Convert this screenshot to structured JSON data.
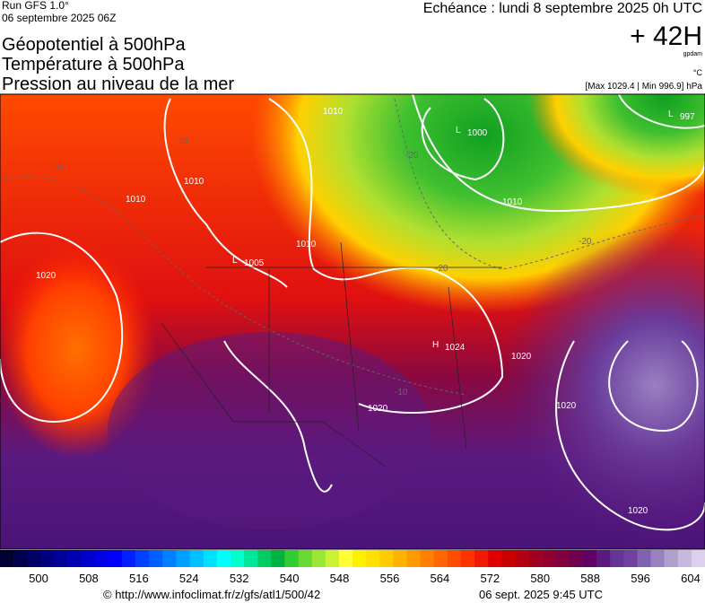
{
  "header": {
    "run": "Run GFS 1.0°",
    "run_date": "06 septembre 2025 06Z",
    "forecast": "Echéance : lundi 8 septembre 2025 0h UTC",
    "lead": "+ 42H",
    "unit_height": "gpdam",
    "unit_temp": "°C",
    "pressure_range": "[Max 1029.4 | Min 996.9] hPa"
  },
  "titles": [
    "Géopotentiel à 500hPa",
    "Température à 500hPa",
    "Pression au niveau de la mer"
  ],
  "centers": [
    {
      "kind": "L",
      "value": 1000
    },
    {
      "kind": "L",
      "value": 997
    },
    {
      "kind": "L",
      "value": 1005
    },
    {
      "kind": "H",
      "value": 1024
    }
  ],
  "isobar_labels": [
    1010,
    1010,
    1010,
    1010,
    1010,
    1020,
    1020,
    1020,
    1020,
    1020
  ],
  "temperature_labels": [
    -20,
    -20,
    -20,
    -10,
    -10,
    -10
  ],
  "colorbar": {
    "labels": [
      500,
      508,
      516,
      524,
      532,
      540,
      548,
      556,
      564,
      572,
      580,
      588,
      596,
      604
    ],
    "colors": [
      "#000033",
      "#00004d",
      "#000066",
      "#000080",
      "#00009a",
      "#0000b3",
      "#0000cd",
      "#0000e6",
      "#0000ff",
      "#0020ff",
      "#0040ff",
      "#0060ff",
      "#0080ff",
      "#00a0ff",
      "#00c0ff",
      "#00e0ff",
      "#00ffff",
      "#00ffcc",
      "#00e699",
      "#00cc66",
      "#00b33c",
      "#33cc33",
      "#66d933",
      "#99e633",
      "#ccf033",
      "#ffff33",
      "#fff000",
      "#ffe000",
      "#ffcc00",
      "#ffb300",
      "#ff9900",
      "#ff8000",
      "#ff6600",
      "#ff4d00",
      "#ff3300",
      "#f01a00",
      "#e00000",
      "#c80000",
      "#b40010",
      "#a00020",
      "#900030",
      "#800040",
      "#700050",
      "#600066",
      "#5a1a80",
      "#663399",
      "#7040a0",
      "#8060b0",
      "#9a80c0",
      "#b0a0d0",
      "#c8b8e0",
      "#ddd0ee"
    ]
  },
  "footer": {
    "url": "© http://www.infoclimat.fr/z/gfs/atl1/500/42",
    "timestamp": "06 sept. 2025  9:45 UTC"
  }
}
